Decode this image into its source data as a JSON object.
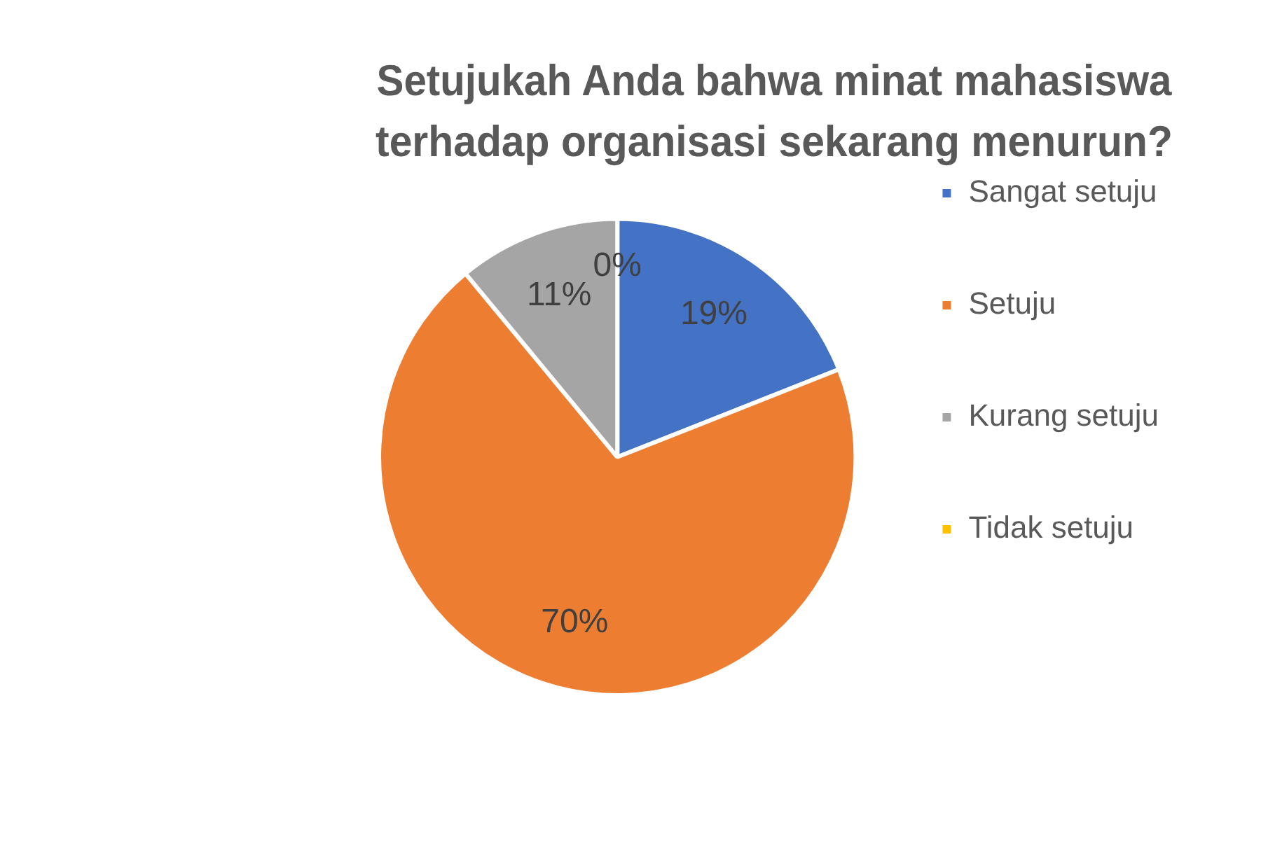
{
  "chart_data": {
    "type": "pie",
    "title": "Setujukah Anda bahwa minat mahasiswa terhadap organisasi sekarang menurun?",
    "categories": [
      "Sangat setuju",
      "Setuju",
      "Kurang setuju",
      "Tidak setuju"
    ],
    "values": [
      19,
      70,
      11,
      0
    ],
    "colors": [
      "#4472c4",
      "#ed7d31",
      "#a5a5a5",
      "#ffc000"
    ],
    "value_labels": [
      "19%",
      "70%",
      "11%",
      "0%"
    ],
    "legend": "right"
  }
}
